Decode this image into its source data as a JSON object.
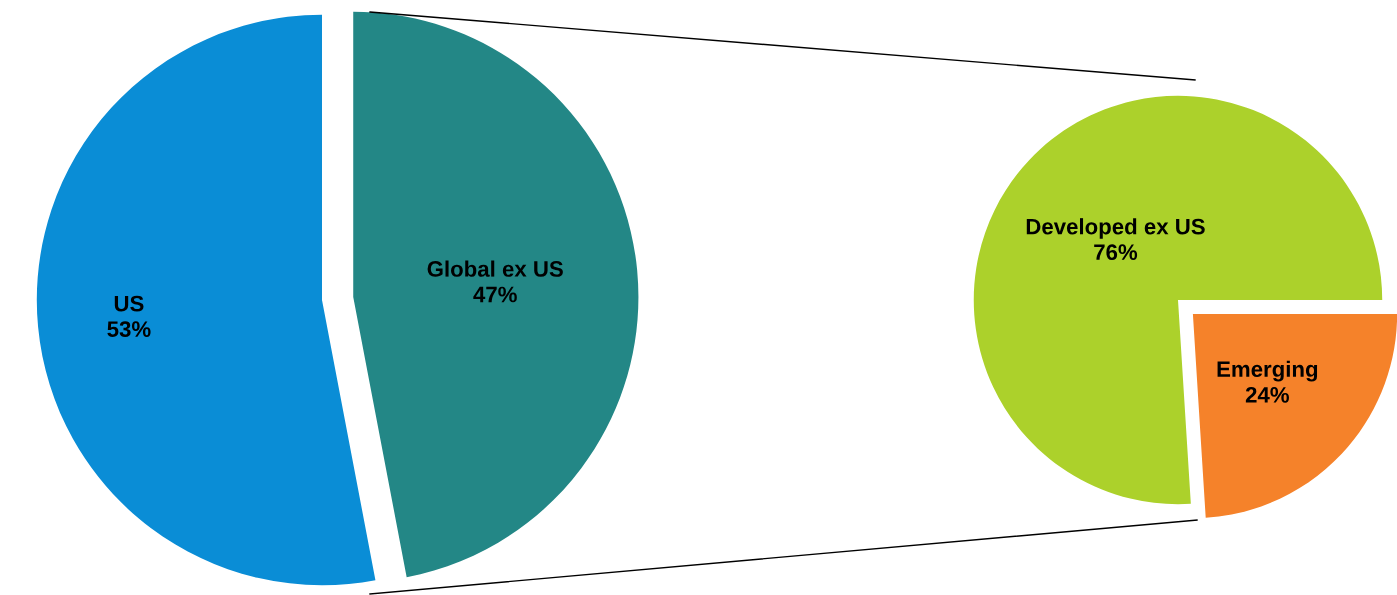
{
  "chart_data": [
    {
      "type": "pie",
      "categories": [
        "US",
        "Global ex US"
      ],
      "values": [
        53,
        47
      ],
      "colors": [
        "#0a8dd6",
        "#238786"
      ],
      "value_labels": [
        "53%",
        "47%"
      ]
    },
    {
      "type": "pie",
      "categories": [
        "Developed ex US",
        "Emerging"
      ],
      "values": [
        76,
        24
      ],
      "colors": [
        "#acd12b",
        "#f5822a"
      ],
      "value_labels": [
        "76%",
        "24%"
      ]
    }
  ]
}
